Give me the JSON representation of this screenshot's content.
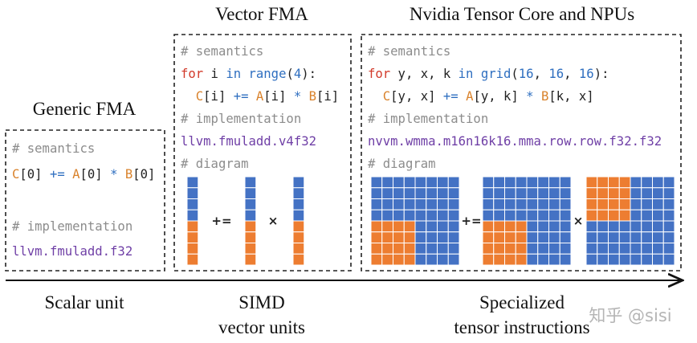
{
  "generic": {
    "title": "Generic FMA",
    "lines": [
      [
        {
          "text": "# semantics",
          "color": "#8c8c8c"
        }
      ],
      [
        {
          "text": "C",
          "color": "#d9822b"
        },
        {
          "text": "[0] ",
          "color": "#222222"
        },
        {
          "text": "+=",
          "color": "#2f6fc0"
        },
        {
          "text": " ",
          "color": "#222222"
        },
        {
          "text": "A",
          "color": "#d9822b"
        },
        {
          "text": "[0] ",
          "color": "#222222"
        },
        {
          "text": "*",
          "color": "#2f6fc0"
        },
        {
          "text": " ",
          "color": "#222222"
        },
        {
          "text": "B",
          "color": "#d9822b"
        },
        {
          "text": "[0]",
          "color": "#222222"
        }
      ],
      [
        {
          "text": "# implementation",
          "color": "#8c8c8c"
        }
      ],
      [
        {
          "text": "llvm.fmuladd.f32",
          "color": "#6f3fa6"
        }
      ]
    ]
  },
  "vector": {
    "title": "Vector FMA",
    "lines": [
      [
        {
          "text": "# semantics",
          "color": "#8c8c8c"
        }
      ],
      [
        {
          "text": "for",
          "color": "#d23a2a"
        },
        {
          "text": " i ",
          "color": "#222222"
        },
        {
          "text": "in",
          "color": "#2f6fc0"
        },
        {
          "text": " ",
          "color": "#222222"
        },
        {
          "text": "range",
          "color": "#2f6fc0"
        },
        {
          "text": "(",
          "color": "#222222"
        },
        {
          "text": "4",
          "color": "#2f6fc0"
        },
        {
          "text": "):",
          "color": "#222222"
        }
      ],
      [
        {
          "text": "  ",
          "color": "#222222"
        },
        {
          "text": "C",
          "color": "#d9822b"
        },
        {
          "text": "[i] ",
          "color": "#222222"
        },
        {
          "text": "+=",
          "color": "#2f6fc0"
        },
        {
          "text": " ",
          "color": "#222222"
        },
        {
          "text": "A",
          "color": "#d9822b"
        },
        {
          "text": "[i] ",
          "color": "#222222"
        },
        {
          "text": "*",
          "color": "#2f6fc0"
        },
        {
          "text": " ",
          "color": "#222222"
        },
        {
          "text": "B",
          "color": "#d9822b"
        },
        {
          "text": "[i]",
          "color": "#222222"
        }
      ],
      [
        {
          "text": "# implementation",
          "color": "#8c8c8c"
        }
      ],
      [
        {
          "text": "llvm.fmuladd.v4f32",
          "color": "#6f3fa6"
        }
      ],
      [
        {
          "text": "# diagram",
          "color": "#8c8c8c"
        }
      ]
    ],
    "ops": [
      "+=",
      "×"
    ]
  },
  "tensor": {
    "title": "Nvidia Tensor Core and NPUs",
    "lines": [
      [
        {
          "text": "# semantics",
          "color": "#8c8c8c"
        }
      ],
      [
        {
          "text": "for",
          "color": "#d23a2a"
        },
        {
          "text": " y, x, k ",
          "color": "#222222"
        },
        {
          "text": "in",
          "color": "#2f6fc0"
        },
        {
          "text": " ",
          "color": "#222222"
        },
        {
          "text": "grid",
          "color": "#2f6fc0"
        },
        {
          "text": "(",
          "color": "#222222"
        },
        {
          "text": "16",
          "color": "#2f6fc0"
        },
        {
          "text": ", ",
          "color": "#222222"
        },
        {
          "text": "16",
          "color": "#2f6fc0"
        },
        {
          "text": ", ",
          "color": "#222222"
        },
        {
          "text": "16",
          "color": "#2f6fc0"
        },
        {
          "text": "):",
          "color": "#222222"
        }
      ],
      [
        {
          "text": "  ",
          "color": "#222222"
        },
        {
          "text": "C",
          "color": "#d9822b"
        },
        {
          "text": "[y, x] ",
          "color": "#222222"
        },
        {
          "text": "+=",
          "color": "#2f6fc0"
        },
        {
          "text": " ",
          "color": "#222222"
        },
        {
          "text": "A",
          "color": "#d9822b"
        },
        {
          "text": "[y, k] ",
          "color": "#222222"
        },
        {
          "text": "*",
          "color": "#2f6fc0"
        },
        {
          "text": " ",
          "color": "#222222"
        },
        {
          "text": "B",
          "color": "#d9822b"
        },
        {
          "text": "[k, x]",
          "color": "#222222"
        }
      ],
      [
        {
          "text": "# implementation",
          "color": "#8c8c8c"
        }
      ],
      [
        {
          "text": "nvvm.wmma.m16n16k16.mma.row.row.f32.f32",
          "color": "#6f3fa6"
        }
      ],
      [
        {
          "text": "# diagram",
          "color": "#8c8c8c"
        }
      ]
    ],
    "ops": [
      "+=",
      "×"
    ]
  },
  "axis_labels": [
    "Scalar unit",
    "SIMD",
    "vector units",
    "Specialized",
    "tensor instructions"
  ],
  "watermark": "知乎 @sisi"
}
